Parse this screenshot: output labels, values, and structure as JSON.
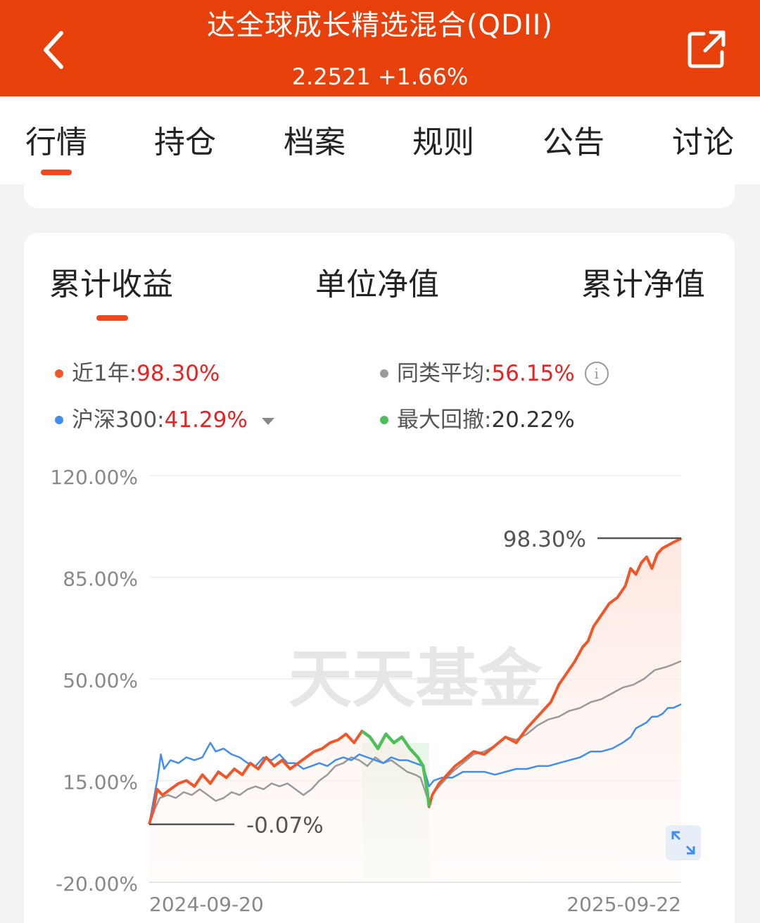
{
  "header": {
    "title": "达全球成长精选混合(QDII)",
    "nav_value": "2.2521",
    "change": "+1.66%",
    "icons": {
      "back": "chevron-left-icon",
      "share": "share-icon"
    },
    "background_color": "#e8400b"
  },
  "tabs": [
    {
      "label": "行情",
      "active": true
    },
    {
      "label": "持仓",
      "active": false
    },
    {
      "label": "档案",
      "active": false
    },
    {
      "label": "规则",
      "active": false
    },
    {
      "label": "公告",
      "active": false
    },
    {
      "label": "讨论",
      "active": false
    }
  ],
  "subtabs": [
    {
      "label": "累计收益",
      "active": true
    },
    {
      "label": "单位净值",
      "active": false
    },
    {
      "label": "累计净值",
      "active": false
    }
  ],
  "legend": {
    "fund": {
      "label": "近1年:",
      "value": "98.30%",
      "color": "#f0562a"
    },
    "peer": {
      "label": "同类平均:",
      "value": "56.15%",
      "color": "#9a9a9a",
      "icon": "info-icon"
    },
    "index": {
      "label": "沪深300:",
      "value": "41.29%",
      "color": "#3f8ef0",
      "icon": "dropdown-caret-icon"
    },
    "drawdown": {
      "label": "最大回撤:",
      "value": "20.22%",
      "color": "#4cc15a"
    }
  },
  "chart_data": {
    "type": "line",
    "x_start": "2024-09-20",
    "x_end": "2025-09-22",
    "y_ticks": [
      "120.00%",
      "85.00%",
      "50.00%",
      "15.00%",
      "-20.00%"
    ],
    "ylim": [
      -20,
      120
    ],
    "y_tick_values": [
      120,
      85,
      50,
      15,
      -20
    ],
    "grid": true,
    "watermark": "天天基金",
    "annotations": {
      "end_value": "98.30%",
      "start_value": "-0.07%"
    },
    "series": [
      {
        "name": "近1年",
        "color": "#f0562a",
        "points": [
          [
            0,
            -0.07
          ],
          [
            0.8,
            5
          ],
          [
            1.5,
            12
          ],
          [
            2.5,
            10
          ],
          [
            4,
            12
          ],
          [
            5.5,
            14
          ],
          [
            7,
            15
          ],
          [
            8.5,
            13
          ],
          [
            10,
            17
          ],
          [
            11.5,
            14
          ],
          [
            13,
            18
          ],
          [
            14.5,
            16
          ],
          [
            16,
            19
          ],
          [
            17.5,
            17
          ],
          [
            19,
            21
          ],
          [
            20.5,
            19
          ],
          [
            22,
            23
          ],
          [
            23.5,
            20
          ],
          [
            25,
            22
          ],
          [
            26.5,
            19
          ],
          [
            28,
            21
          ],
          [
            29.5,
            23
          ],
          [
            31,
            25
          ],
          [
            32.5,
            26
          ],
          [
            34,
            28
          ],
          [
            35.5,
            29
          ],
          [
            37,
            31
          ],
          [
            38.5,
            28
          ],
          [
            40,
            32
          ],
          [
            41.5,
            30
          ],
          [
            43,
            26
          ],
          [
            44.5,
            31
          ],
          [
            46,
            28
          ],
          [
            47.5,
            30
          ],
          [
            49,
            26
          ],
          [
            50.5,
            23
          ],
          [
            51.5,
            20
          ],
          [
            52.3,
            11
          ],
          [
            52.6,
            6
          ],
          [
            53.2,
            10
          ],
          [
            54.5,
            14
          ],
          [
            56,
            17
          ],
          [
            57.5,
            20
          ],
          [
            59,
            22
          ],
          [
            61,
            25
          ],
          [
            63,
            24
          ],
          [
            65,
            27
          ],
          [
            67,
            30
          ],
          [
            69,
            28
          ],
          [
            71,
            33
          ],
          [
            72.5,
            36
          ],
          [
            74,
            39
          ],
          [
            75.5,
            42
          ],
          [
            77,
            48
          ],
          [
            78.5,
            52
          ],
          [
            80,
            56
          ],
          [
            81.5,
            61
          ],
          [
            82.5,
            63
          ],
          [
            83.5,
            68
          ],
          [
            85,
            72
          ],
          [
            86.5,
            76
          ],
          [
            88,
            78
          ],
          [
            89.5,
            82
          ],
          [
            90.5,
            88
          ],
          [
            91.5,
            86
          ],
          [
            92.5,
            90
          ],
          [
            93.5,
            92
          ],
          [
            94.5,
            88
          ],
          [
            95.5,
            93
          ],
          [
            96.5,
            95
          ],
          [
            97.5,
            96
          ],
          [
            98.5,
            97
          ],
          [
            100,
            98.3
          ]
        ]
      },
      {
        "name": "同类平均",
        "color": "#9a9a9a",
        "points": [
          [
            0,
            -0.07
          ],
          [
            1,
            5
          ],
          [
            2,
            9
          ],
          [
            3.5,
            10
          ],
          [
            5,
            9
          ],
          [
            6.5,
            11
          ],
          [
            8,
            10
          ],
          [
            9.5,
            12
          ],
          [
            11,
            10
          ],
          [
            12.5,
            8
          ],
          [
            14,
            9
          ],
          [
            15.5,
            11
          ],
          [
            17,
            10
          ],
          [
            18.5,
            12
          ],
          [
            20,
            13
          ],
          [
            21.5,
            12
          ],
          [
            23,
            14
          ],
          [
            24.5,
            13
          ],
          [
            26,
            14
          ],
          [
            27.5,
            12
          ],
          [
            29,
            10
          ],
          [
            30.5,
            12
          ],
          [
            32,
            15
          ],
          [
            33.5,
            17
          ],
          [
            35,
            20
          ],
          [
            36.5,
            21
          ],
          [
            38,
            23
          ],
          [
            39.5,
            22
          ],
          [
            41,
            20
          ],
          [
            42.5,
            23
          ],
          [
            44,
            21
          ],
          [
            45.5,
            22
          ],
          [
            47,
            20
          ],
          [
            48.5,
            18
          ],
          [
            50,
            17
          ],
          [
            51,
            16
          ],
          [
            52.3,
            9
          ],
          [
            52.6,
            7
          ],
          [
            53.5,
            11
          ],
          [
            55,
            14
          ],
          [
            57,
            18
          ],
          [
            59,
            21
          ],
          [
            61,
            24
          ],
          [
            63,
            25
          ],
          [
            65,
            27
          ],
          [
            67,
            30
          ],
          [
            69,
            29
          ],
          [
            71,
            31
          ],
          [
            73,
            34
          ],
          [
            75,
            36
          ],
          [
            77,
            37
          ],
          [
            79,
            39
          ],
          [
            81,
            40
          ],
          [
            83,
            42
          ],
          [
            85,
            43
          ],
          [
            87,
            45
          ],
          [
            89,
            47
          ],
          [
            91,
            48
          ],
          [
            93,
            50
          ],
          [
            95,
            53
          ],
          [
            97,
            54
          ],
          [
            98.5,
            55
          ],
          [
            100,
            56.15
          ]
        ]
      },
      {
        "name": "沪深300",
        "color": "#3f8ef0",
        "points": [
          [
            0,
            -0.07
          ],
          [
            0.8,
            8
          ],
          [
            1.6,
            16
          ],
          [
            2.2,
            24
          ],
          [
            2.8,
            19
          ],
          [
            4,
            22
          ],
          [
            5.5,
            21
          ],
          [
            7,
            23
          ],
          [
            8.5,
            22
          ],
          [
            10,
            23
          ],
          [
            11.5,
            28
          ],
          [
            12.5,
            25
          ],
          [
            14,
            26
          ],
          [
            15.5,
            24
          ],
          [
            17,
            23
          ],
          [
            18.5,
            21
          ],
          [
            20,
            20
          ],
          [
            21.5,
            23
          ],
          [
            23,
            22
          ],
          [
            24.5,
            24
          ],
          [
            26,
            21
          ],
          [
            27.5,
            21
          ],
          [
            29,
            19
          ],
          [
            30.5,
            20
          ],
          [
            32,
            21
          ],
          [
            33.5,
            20
          ],
          [
            35,
            22
          ],
          [
            36.5,
            23
          ],
          [
            38,
            22
          ],
          [
            39.5,
            24
          ],
          [
            41,
            23
          ],
          [
            42.5,
            22
          ],
          [
            44,
            21
          ],
          [
            45.5,
            23
          ],
          [
            47,
            22
          ],
          [
            48.5,
            22
          ],
          [
            50,
            21
          ],
          [
            51.5,
            20
          ],
          [
            52.3,
            15
          ],
          [
            52.6,
            13
          ],
          [
            53.5,
            15
          ],
          [
            55,
            16
          ],
          [
            57,
            16
          ],
          [
            59,
            18
          ],
          [
            61,
            18
          ],
          [
            63,
            18
          ],
          [
            65,
            17
          ],
          [
            67,
            18
          ],
          [
            69,
            19
          ],
          [
            71,
            19
          ],
          [
            73,
            20
          ],
          [
            75,
            20
          ],
          [
            77,
            21
          ],
          [
            79,
            22
          ],
          [
            81,
            23
          ],
          [
            83,
            25
          ],
          [
            85,
            25
          ],
          [
            87,
            26
          ],
          [
            89,
            28
          ],
          [
            90.5,
            30
          ],
          [
            91.5,
            33
          ],
          [
            92.5,
            34
          ],
          [
            93.5,
            35
          ],
          [
            94.5,
            37
          ],
          [
            95.5,
            37
          ],
          [
            96.5,
            38
          ],
          [
            97.5,
            40
          ],
          [
            98.5,
            40
          ],
          [
            100,
            41.29
          ]
        ]
      }
    ],
    "drawdown_range": [
      40,
      52.6
    ]
  }
}
